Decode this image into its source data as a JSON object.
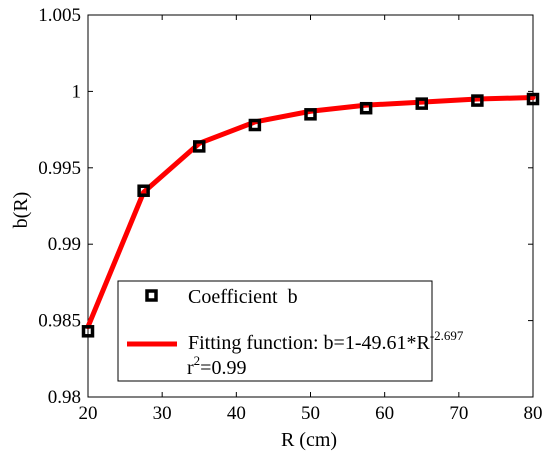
{
  "chart_data": {
    "type": "line",
    "title": "",
    "xlabel": "R (cm)",
    "ylabel": "b(R)",
    "xlim": [
      20,
      80
    ],
    "ylim": [
      0.98,
      1.005
    ],
    "xticks": [
      20,
      30,
      40,
      50,
      60,
      70,
      80
    ],
    "xtick_labels": [
      "20",
      "30",
      "40",
      "50",
      "60",
      "70",
      "80"
    ],
    "yticks": [
      0.98,
      0.985,
      0.99,
      0.995,
      1.0,
      1.005
    ],
    "ytick_labels": [
      "0.98",
      "0.985",
      "0.99",
      "0.995",
      "1",
      "1.005"
    ],
    "grid": false,
    "legend_position": "bottom-right",
    "series": [
      {
        "name": "Coefficient  b",
        "kind": "scatter",
        "marker": "square",
        "color": "#000000",
        "x": [
          20,
          27.5,
          35,
          42.5,
          50,
          57.5,
          65,
          72.5,
          80
        ],
        "y": [
          0.9843,
          0.9935,
          0.9964,
          0.9978,
          0.9985,
          0.9989,
          0.9992,
          0.9994,
          0.9995
        ]
      },
      {
        "name": "Fitting function: b=1-49.61*R",
        "name_exponent": "-2.697",
        "kind": "line",
        "color": "#ff0000",
        "x": [
          20,
          27.5,
          35,
          42.5,
          50,
          57.5,
          65,
          72.5,
          80
        ],
        "y": [
          0.9846,
          0.9934,
          0.9966,
          0.998,
          0.9987,
          0.9991,
          0.9993,
          0.9995,
          0.9996
        ]
      }
    ],
    "legend": {
      "r2_base": "r",
      "r2_exponent": "2",
      "r2_value": "=0.99"
    }
  }
}
